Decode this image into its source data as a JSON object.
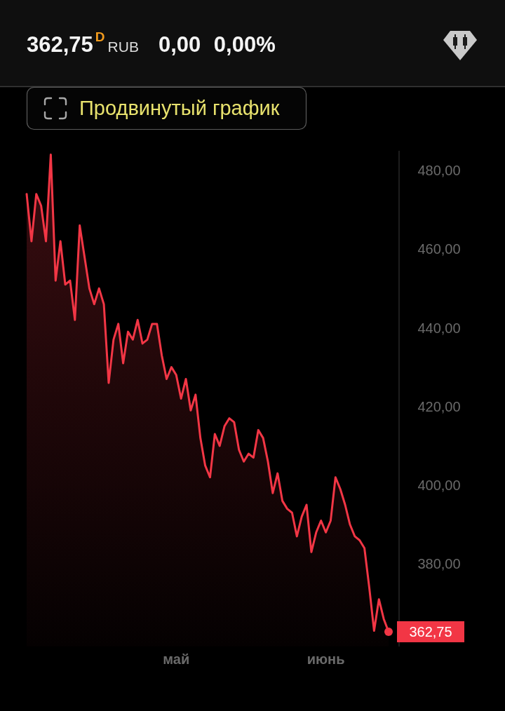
{
  "chart_data": {
    "type": "area",
    "title": "362,75$^{D}$ RUB",
    "subtitle": "0,00 0,00%",
    "annotations": [
      "Продвинутый график"
    ],
    "categories": [
      null,
      null,
      null,
      null,
      null,
      null,
      null,
      null,
      null,
      null,
      null,
      null,
      null,
      null,
      null,
      null,
      null,
      null,
      null,
      null,
      null,
      null,
      null,
      null,
      null,
      null,
      null,
      null,
      null,
      null,
      null,
      "май",
      null,
      null,
      null,
      null,
      null,
      null,
      null,
      null,
      null,
      null,
      null,
      null,
      null,
      null,
      null,
      null,
      null,
      null,
      null,
      null,
      null,
      null,
      null,
      null,
      null,
      null,
      null,
      null,
      null,
      null,
      "июнь",
      null,
      null,
      null,
      null,
      null,
      null,
      null,
      null,
      null,
      null,
      null,
      null,
      null
    ],
    "series": [
      {
        "color": "#f23645",
        "values": [
          474,
          462,
          474,
          471,
          462,
          484,
          452,
          462,
          451,
          452,
          442,
          466,
          458,
          450,
          446,
          450,
          446,
          426,
          437,
          441,
          431,
          439,
          437,
          442,
          436,
          437,
          441,
          441,
          433,
          427,
          430,
          428,
          422,
          427,
          419,
          423,
          412,
          405,
          402,
          413,
          410,
          415,
          417,
          416,
          409,
          406,
          408,
          407,
          414,
          412,
          406,
          398,
          403,
          396,
          394,
          393,
          387,
          392,
          395,
          383,
          388,
          391,
          388,
          391,
          402,
          399,
          395,
          390,
          387,
          386,
          384,
          374,
          363,
          371,
          366,
          362.75
        ],
        "value_labels": [
          null,
          null,
          null,
          null,
          null,
          null,
          null,
          null,
          null,
          null,
          null,
          null,
          null,
          null,
          null,
          null,
          null,
          null,
          null,
          null,
          null,
          null,
          null,
          null,
          null,
          null,
          null,
          null,
          null,
          null,
          null,
          null,
          null,
          null,
          null,
          null,
          null,
          null,
          null,
          null,
          null,
          null,
          null,
          null,
          null,
          null,
          null,
          null,
          null,
          null,
          null,
          null,
          null,
          null,
          null,
          null,
          null,
          null,
          null,
          null,
          null,
          null,
          null,
          null,
          null,
          null,
          null,
          null,
          null,
          null,
          null,
          null,
          null,
          null,
          null,
          "362,75"
        ]
      },
      {
        "type": "scatter",
        "color": "#f23645",
        "values": [
          null,
          null,
          null,
          null,
          null,
          null,
          null,
          null,
          null,
          null,
          null,
          null,
          null,
          null,
          null,
          null,
          null,
          null,
          null,
          null,
          null,
          null,
          null,
          null,
          null,
          null,
          null,
          null,
          null,
          null,
          null,
          null,
          null,
          null,
          null,
          null,
          null,
          null,
          null,
          null,
          null,
          null,
          null,
          null,
          null,
          null,
          null,
          null,
          null,
          null,
          null,
          null,
          null,
          null,
          null,
          null,
          null,
          null,
          null,
          null,
          null,
          null,
          null,
          null,
          null,
          null,
          null,
          null,
          null,
          null,
          null,
          null,
          null,
          null,
          null,
          362.75
        ]
      }
    ],
    "ylim": [
      359,
      485
    ],
    "yticks": [
      {
        "value": 380,
        "label": "380,00"
      },
      {
        "value": 400,
        "label": "400,00"
      },
      {
        "value": 420,
        "label": "420,00"
      },
      {
        "value": 440,
        "label": "440,00"
      },
      {
        "value": 460,
        "label": "460,00"
      },
      {
        "value": 480,
        "label": "480,00"
      }
    ]
  }
}
